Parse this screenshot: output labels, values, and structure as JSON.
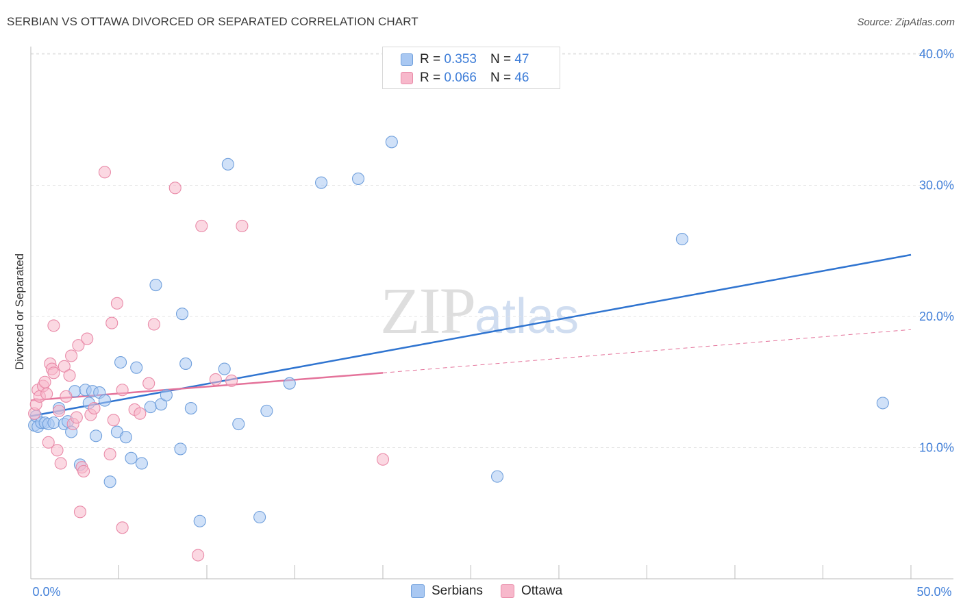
{
  "header": {
    "title": "SERBIAN VS OTTAWA DIVORCED OR SEPARATED CORRELATION CHART",
    "source": "Source: ZipAtlas.com"
  },
  "watermark": {
    "zip": "ZIP",
    "atlas": "atlas"
  },
  "legend_top": {
    "rows": [
      {
        "r_label": "R = ",
        "r_value": "0.353",
        "n_label": "N = ",
        "n_value": "47"
      },
      {
        "r_label": "R = ",
        "r_value": "0.066",
        "n_label": "N = ",
        "n_value": "46"
      }
    ]
  },
  "legend_bottom": {
    "series1": "Serbians",
    "series2": "Ottawa"
  },
  "colors": {
    "serbians_fill": "#a9c8f2",
    "serbians_stroke": "#6f9fdc",
    "serbians_line": "#2f74d0",
    "ottawa_fill": "#f7b8cb",
    "ottawa_stroke": "#e98aa8",
    "ottawa_line": "#e4729a",
    "tick_text": "#3f7ed8",
    "grid": "#e3e3e3"
  },
  "chart_data": {
    "type": "scatter",
    "title": "SERBIAN VS OTTAWA DIVORCED OR SEPARATED CORRELATION CHART",
    "xlabel": "",
    "ylabel": "Divorced or Separated",
    "xlim": [
      0,
      50
    ],
    "ylim": [
      0,
      42
    ],
    "x_tick_labels": [
      "0.0%",
      "50.0%"
    ],
    "y_ticks": [
      10,
      20,
      30,
      40
    ],
    "y_tick_labels": [
      "10.0%",
      "20.0%",
      "30.0%",
      "40.0%"
    ],
    "series": [
      {
        "name": "Serbians",
        "points": [
          [
            0.2,
            11.7
          ],
          [
            0.3,
            12.4
          ],
          [
            0.4,
            11.6
          ],
          [
            0.6,
            11.9
          ],
          [
            0.8,
            11.9
          ],
          [
            1.0,
            11.8
          ],
          [
            1.3,
            11.9
          ],
          [
            1.6,
            13.0
          ],
          [
            1.9,
            11.8
          ],
          [
            2.1,
            12.0
          ],
          [
            2.3,
            11.2
          ],
          [
            2.5,
            14.3
          ],
          [
            2.8,
            8.7
          ],
          [
            3.1,
            14.4
          ],
          [
            3.3,
            13.4
          ],
          [
            3.5,
            14.3
          ],
          [
            3.7,
            10.9
          ],
          [
            3.9,
            14.2
          ],
          [
            4.2,
            13.6
          ],
          [
            4.5,
            7.4
          ],
          [
            4.9,
            11.2
          ],
          [
            5.1,
            16.5
          ],
          [
            5.4,
            10.8
          ],
          [
            5.7,
            9.2
          ],
          [
            6.0,
            16.1
          ],
          [
            6.3,
            8.8
          ],
          [
            6.8,
            13.1
          ],
          [
            7.1,
            22.4
          ],
          [
            7.4,
            13.3
          ],
          [
            7.7,
            14.0
          ],
          [
            8.5,
            9.9
          ],
          [
            8.6,
            20.2
          ],
          [
            8.8,
            16.4
          ],
          [
            9.1,
            13.0
          ],
          [
            9.6,
            4.4
          ],
          [
            11.0,
            16.0
          ],
          [
            11.2,
            31.6
          ],
          [
            11.8,
            11.8
          ],
          [
            13.0,
            4.7
          ],
          [
            13.4,
            12.8
          ],
          [
            14.7,
            14.9
          ],
          [
            16.5,
            30.2
          ],
          [
            18.6,
            30.5
          ],
          [
            20.5,
            33.3
          ],
          [
            26.5,
            7.8
          ],
          [
            37.0,
            25.9
          ],
          [
            48.4,
            13.4
          ]
        ]
      },
      {
        "name": "Ottawa",
        "points": [
          [
            0.2,
            12.6
          ],
          [
            0.3,
            13.3
          ],
          [
            0.4,
            14.4
          ],
          [
            0.5,
            13.9
          ],
          [
            0.7,
            14.7
          ],
          [
            0.8,
            15.0
          ],
          [
            0.9,
            14.1
          ],
          [
            1.0,
            10.4
          ],
          [
            1.1,
            16.4
          ],
          [
            1.2,
            16.0
          ],
          [
            1.3,
            15.7
          ],
          [
            1.3,
            19.3
          ],
          [
            1.6,
            12.8
          ],
          [
            1.5,
            9.8
          ],
          [
            1.7,
            8.8
          ],
          [
            1.9,
            16.2
          ],
          [
            2.0,
            13.9
          ],
          [
            2.2,
            15.5
          ],
          [
            2.3,
            17.0
          ],
          [
            2.4,
            11.8
          ],
          [
            2.6,
            12.3
          ],
          [
            2.7,
            17.8
          ],
          [
            2.8,
            5.1
          ],
          [
            2.9,
            8.5
          ],
          [
            3.0,
            8.2
          ],
          [
            3.2,
            18.3
          ],
          [
            3.4,
            12.5
          ],
          [
            3.6,
            13.0
          ],
          [
            4.2,
            31.0
          ],
          [
            4.5,
            9.5
          ],
          [
            4.6,
            19.5
          ],
          [
            4.7,
            12.1
          ],
          [
            4.9,
            21.0
          ],
          [
            5.2,
            14.4
          ],
          [
            5.2,
            3.9
          ],
          [
            5.9,
            12.9
          ],
          [
            6.2,
            12.6
          ],
          [
            6.7,
            14.9
          ],
          [
            7.0,
            19.4
          ],
          [
            8.2,
            29.8
          ],
          [
            9.5,
            1.8
          ],
          [
            9.7,
            26.9
          ],
          [
            10.5,
            15.2
          ],
          [
            11.4,
            15.1
          ],
          [
            12.0,
            26.9
          ],
          [
            20.0,
            9.1
          ]
        ]
      }
    ],
    "trendlines": [
      {
        "name": "Serbians",
        "x": [
          0,
          50
        ],
        "y": [
          12.4,
          24.7
        ],
        "style": "solid"
      },
      {
        "name": "Ottawa",
        "x": [
          0,
          20
        ],
        "y": [
          13.6,
          15.7
        ],
        "style": "solid"
      },
      {
        "name": "Ottawa",
        "x": [
          20,
          50
        ],
        "y": [
          15.7,
          19.0
        ],
        "style": "dashed"
      }
    ],
    "grid": true,
    "legend_position": "top-center"
  }
}
